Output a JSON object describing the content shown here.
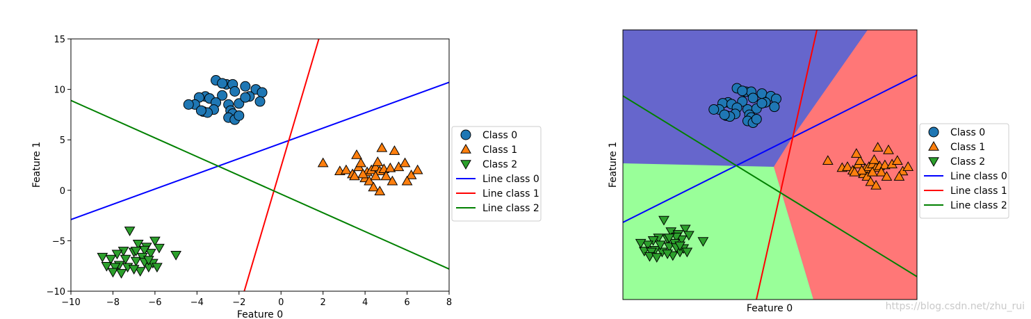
{
  "chart_data": [
    {
      "type": "scatter",
      "title": "",
      "xlabel": "Feature 0",
      "ylabel": "Feature 1",
      "xlim": [
        -10,
        8
      ],
      "ylim": [
        -10,
        15
      ],
      "xticks": [
        "−10",
        "−8",
        "−6",
        "−4",
        "−2",
        "0",
        "2",
        "4",
        "6",
        "8"
      ],
      "yticks": [
        "−10",
        "−5",
        "0",
        "5",
        "10",
        "15"
      ],
      "grid": false,
      "legend_position": "outside-right",
      "series": [
        {
          "name": "Class 0",
          "marker": "circle",
          "color": "#1f77b4",
          "x": [
            -3.1,
            -3.6,
            -2.6,
            -2.3,
            -1.7,
            -1.2,
            -0.9,
            -3.9,
            -3.4,
            -2.8,
            -2.2,
            -1.5,
            -4.1,
            -3.1,
            -2.5,
            -2.0,
            -1.7,
            -1.0,
            -4.4,
            -3.7,
            -3.2,
            -2.4,
            -2.3,
            -3.5,
            -2.5,
            -2.2,
            -2.0,
            -3.8,
            -2.8
          ],
          "y": [
            10.9,
            9.3,
            10.5,
            10.5,
            10.3,
            10.0,
            9.7,
            9.2,
            9.1,
            9.4,
            9.8,
            9.3,
            8.5,
            8.7,
            8.5,
            8.6,
            9.2,
            8.8,
            8.5,
            7.8,
            8.0,
            7.9,
            7.6,
            7.7,
            7.2,
            7.0,
            7.4,
            7.9,
            10.6
          ]
        },
        {
          "name": "Class 1",
          "marker": "triangle-up",
          "color": "#ff7f0e",
          "x": [
            2.0,
            2.8,
            3.1,
            3.4,
            3.7,
            3.8,
            4.1,
            4.3,
            4.5,
            4.7,
            4.9,
            5.2,
            5.6,
            5.9,
            6.2,
            6.5,
            3.6,
            4.0,
            4.6,
            5.0,
            4.2,
            4.4,
            4.7,
            5.3,
            3.9,
            4.8,
            6.0,
            5.4,
            4.5,
            3.5
          ],
          "y": [
            2.7,
            1.9,
            2.0,
            1.6,
            2.3,
            2.7,
            1.8,
            2.0,
            2.3,
            1.9,
            2.1,
            2.2,
            2.3,
            2.7,
            1.5,
            2.0,
            3.5,
            1.2,
            2.8,
            1.4,
            0.9,
            0.3,
            -0.1,
            0.9,
            1.6,
            4.2,
            0.9,
            3.9,
            1.4,
            1.4
          ]
        },
        {
          "name": "Class 2",
          "marker": "triangle-down",
          "color": "#2ca02c",
          "x": [
            -7.2,
            -6.8,
            -6.4,
            -6.0,
            -5.0,
            -5.8,
            -6.2,
            -6.5,
            -7.0,
            -7.5,
            -7.8,
            -8.1,
            -8.3,
            -8.5,
            -6.9,
            -6.6,
            -7.3,
            -7.7,
            -6.3,
            -6.7,
            -7.0,
            -6.1,
            -5.9,
            -7.9,
            -8.0,
            -7.4,
            -6.9,
            -6.5,
            -6.3,
            -7.6
          ],
          "y": [
            -4.0,
            -5.3,
            -5.6,
            -5.0,
            -6.4,
            -5.7,
            -6.2,
            -5.9,
            -6.1,
            -6.0,
            -6.3,
            -6.8,
            -7.5,
            -6.6,
            -7.0,
            -6.6,
            -7.6,
            -7.4,
            -7.6,
            -8.0,
            -7.8,
            -7.2,
            -7.6,
            -7.6,
            -8.1,
            -6.8,
            -6.0,
            -7.1,
            -6.9,
            -8.2
          ]
        }
      ],
      "lines": [
        {
          "name": "Line class 0",
          "color": "#0000ff",
          "x": [
            -10,
            8
          ],
          "y": [
            -2.9,
            10.7
          ]
        },
        {
          "name": "Line class 1",
          "color": "#ff0000",
          "x": [
            -1.75,
            1.8
          ],
          "y": [
            -10,
            15
          ]
        },
        {
          "name": "Line class 2",
          "color": "#008000",
          "x": [
            -10,
            8
          ],
          "y": [
            8.9,
            -7.8
          ]
        }
      ]
    },
    {
      "type": "scatter",
      "title": "",
      "xlabel": "Feature 0",
      "ylabel": "Feature 1",
      "xticks": [],
      "yticks": [],
      "grid": false,
      "legend_position": "outside-right",
      "background_regions": [
        {
          "name": "Class 0 region",
          "color": "#6666cc"
        },
        {
          "name": "Class 1 region",
          "color": "#ff7777"
        },
        {
          "name": "Class 2 region",
          "color": "#99ff99"
        }
      ],
      "series": [
        {
          "name": "Class 0",
          "marker": "circle",
          "color": "#1f77b4"
        },
        {
          "name": "Class 1",
          "marker": "triangle-up",
          "color": "#ff7f0e"
        },
        {
          "name": "Class 2",
          "marker": "triangle-down",
          "color": "#2ca02c"
        }
      ],
      "lines": [
        {
          "name": "Line class 0",
          "color": "#0000ff"
        },
        {
          "name": "Line class 1",
          "color": "#ff0000"
        },
        {
          "name": "Line class 2",
          "color": "#008000"
        }
      ]
    }
  ],
  "watermark": "https://blog.csdn.net/zhu_rui"
}
